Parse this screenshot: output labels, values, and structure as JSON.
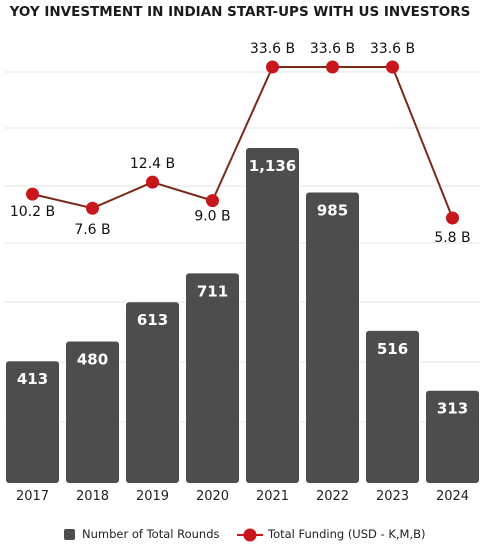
{
  "chart_data": {
    "type": "bar",
    "title": "YOY INVESTMENT IN INDIAN START-UPS WITH US INVESTORS",
    "categories": [
      "2017",
      "2018",
      "2019",
      "2020",
      "2021",
      "2022",
      "2023",
      "2024"
    ],
    "bar_series": {
      "name": "Number of Total Rounds",
      "values": [
        413,
        480,
        613,
        711,
        1136,
        985,
        516,
        313
      ],
      "labels": [
        "413",
        "480",
        "613",
        "711",
        "1,136",
        "985",
        "516",
        "313"
      ],
      "color": "#4d4d4d"
    },
    "line_series": {
      "name": "Total Funding (USD - K,M,B)",
      "values": [
        10.2,
        7.6,
        12.4,
        9.0,
        33.6,
        33.6,
        33.6,
        5.8
      ],
      "labels": [
        "10.2 B",
        "7.6 B",
        "12.4 B",
        "9.0 B",
        "33.6 B",
        "33.6 B",
        "33.6 B",
        "5.8 B"
      ],
      "line_color": "#7a2a1a",
      "marker_color": "#c8161d"
    },
    "bar_ylim": [
      0,
      1400
    ],
    "grid": true,
    "legend_position": "bottom"
  }
}
